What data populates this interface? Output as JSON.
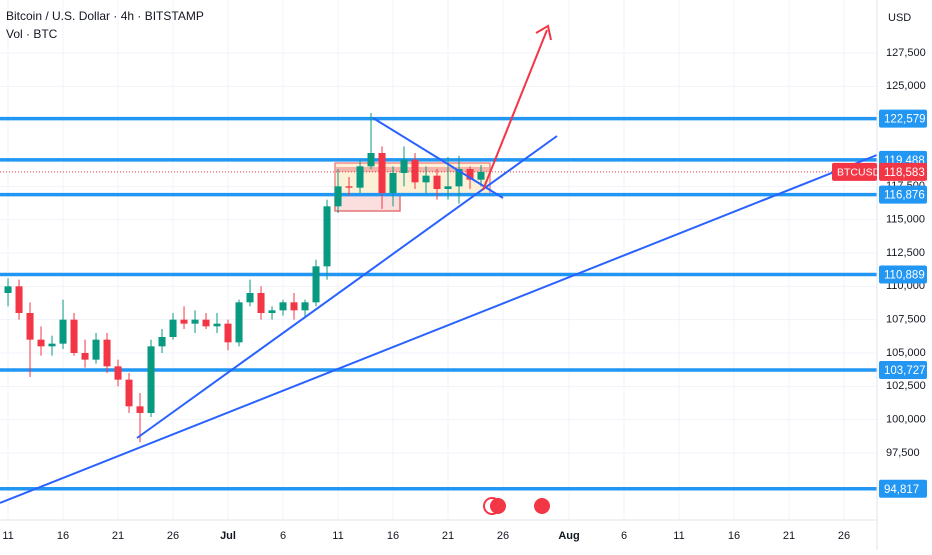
{
  "header": {
    "title": "Bitcoin / U.S. Dollar · 4h · BITSTAMP",
    "indicator": "Vol · BTC"
  },
  "chart_data": {
    "type": "candlestick",
    "axis_unit": "USD",
    "x": [
      0,
      1,
      2,
      3,
      4,
      5,
      6,
      7,
      8,
      9,
      10,
      11,
      12,
      13,
      14,
      15,
      16,
      17,
      18,
      19,
      20,
      21,
      22,
      23,
      24,
      25,
      26,
      27,
      28,
      29,
      30,
      31,
      32,
      33,
      34,
      35,
      36,
      37,
      38,
      39,
      40,
      41,
      42,
      43
    ],
    "open": [
      109500,
      110000,
      108000,
      106000,
      105500,
      105700,
      107500,
      105000,
      104500,
      106000,
      104000,
      103000,
      101000,
      100500,
      105500,
      106200,
      107500,
      107200,
      107500,
      107000,
      107200,
      105800,
      108800,
      109500,
      108000,
      108200,
      108800,
      108200,
      108800,
      111500,
      116000,
      117500,
      117400,
      119000,
      120000,
      117000,
      118500,
      119500,
      117800,
      118300,
      117300,
      117500,
      118800,
      118000
    ],
    "high": [
      110600,
      110500,
      108800,
      107000,
      106300,
      109000,
      108000,
      106000,
      106500,
      106500,
      104500,
      103500,
      102000,
      106000,
      106800,
      108000,
      108500,
      108200,
      108000,
      108000,
      107500,
      109000,
      110500,
      110000,
      108500,
      109000,
      109500,
      109000,
      112000,
      116500,
      118800,
      118200,
      119500,
      123000,
      120500,
      119000,
      120500,
      120000,
      119000,
      118800,
      119700,
      119800,
      119000,
      119100
    ],
    "low": [
      108500,
      107500,
      103200,
      104800,
      104800,
      105300,
      104800,
      103900,
      104200,
      103500,
      102500,
      100500,
      98300,
      100200,
      105000,
      106000,
      106800,
      106500,
      106800,
      106500,
      105200,
      105500,
      108500,
      107500,
      107500,
      107800,
      107500,
      107600,
      108500,
      110500,
      115500,
      116800,
      117000,
      118800,
      115800,
      116000,
      117500,
      117300,
      117000,
      116500,
      116500,
      116200,
      117300,
      117500
    ],
    "close": [
      110000,
      108000,
      106000,
      105500,
      105700,
      107500,
      105000,
      104500,
      106000,
      104000,
      103000,
      101000,
      100500,
      105500,
      106200,
      107500,
      107200,
      107500,
      107000,
      107200,
      105800,
      108800,
      109500,
      108000,
      108200,
      108800,
      108200,
      108800,
      111500,
      116000,
      117500,
      117400,
      119000,
      120000,
      117000,
      118500,
      119500,
      117800,
      118300,
      117300,
      117500,
      118800,
      118000,
      118583
    ],
    "up_color": "#089981",
    "down_color": "#f23645",
    "xlim": [
      -0.73,
      79
    ],
    "xticks": [
      {
        "value": 0,
        "label": "11"
      },
      {
        "value": 5,
        "label": "16"
      },
      {
        "value": 10,
        "label": "21"
      },
      {
        "value": 15,
        "label": "26"
      },
      {
        "value": 20,
        "label": "Jul"
      },
      {
        "value": 25,
        "label": "6"
      },
      {
        "value": 30,
        "label": "11"
      },
      {
        "value": 35,
        "label": "16"
      },
      {
        "value": 40,
        "label": "21"
      },
      {
        "value": 45,
        "label": "26"
      },
      {
        "value": 51,
        "label": "Aug"
      },
      {
        "value": 56,
        "label": "6"
      },
      {
        "value": 61,
        "label": "11"
      },
      {
        "value": 66,
        "label": "16"
      },
      {
        "value": 71,
        "label": "21"
      },
      {
        "value": 76,
        "label": "26"
      }
    ],
    "ylim": [
      92475,
      131475
    ],
    "yticks": [
      {
        "value": 127500,
        "label": "127,500"
      },
      {
        "value": 125000,
        "label": "125,000"
      },
      {
        "value": 117500,
        "label": "117,500"
      },
      {
        "value": 115000,
        "label": "115,000"
      },
      {
        "value": 112500,
        "label": "112,500"
      },
      {
        "value": 110000,
        "label": "110,000"
      },
      {
        "value": 107500,
        "label": "107,500"
      },
      {
        "value": 105000,
        "label": "105,000"
      },
      {
        "value": 102500,
        "label": "102,500"
      },
      {
        "value": 100000,
        "label": "100,000"
      },
      {
        "value": 97500,
        "label": "97,500"
      }
    ],
    "grid": true,
    "levels": {
      "color": "#2196f3",
      "values": [
        {
          "value": 122579,
          "label": "122,579"
        },
        {
          "value": 119488,
          "label": "119,488"
        },
        {
          "value": 116876,
          "label": "116,876"
        },
        {
          "value": 110889,
          "label": "110,889"
        },
        {
          "value": 103727,
          "label": "103,727"
        },
        {
          "value": 94817,
          "label": "94,817"
        }
      ]
    },
    "last_price": {
      "name": "BTCUSD",
      "value": 118583,
      "label": "118,583",
      "color": "#f23645"
    }
  }
}
